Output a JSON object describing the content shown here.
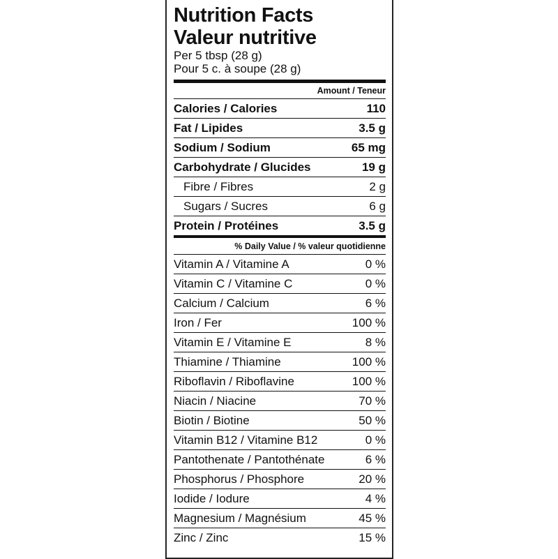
{
  "title_en": "Nutrition Facts",
  "title_fr": "Valeur nutritive",
  "serving_en": "Per 5 tbsp (28 g)",
  "serving_fr": "Pour 5 c. à soupe (28 g)",
  "amount_header": "Amount / Teneur",
  "nutrients": [
    {
      "label": "Calories / Calories",
      "value": "110",
      "bold": true,
      "indent": false
    },
    {
      "label": "Fat / Lipides",
      "value": "3.5 g",
      "bold": true,
      "indent": false
    },
    {
      "label": "Sodium / Sodium",
      "value": "65 mg",
      "bold": true,
      "indent": false
    },
    {
      "label": "Carbohydrate / Glucides",
      "value": "19 g",
      "bold": true,
      "indent": false
    },
    {
      "label": "Fibre / Fibres",
      "value": "2 g",
      "bold": false,
      "indent": true
    },
    {
      "label": "Sugars / Sucres",
      "value": "6 g",
      "bold": false,
      "indent": true
    },
    {
      "label": "Protein / Protéines",
      "value": "3.5 g",
      "bold": true,
      "indent": false
    }
  ],
  "dv_header": "% Daily Value / % valeur quotidienne",
  "vitamins": [
    {
      "label": "Vitamin A / Vitamine A",
      "value": "0 %"
    },
    {
      "label": "Vitamin C / Vitamine C",
      "value": "0 %"
    },
    {
      "label": "Calcium / Calcium",
      "value": "6 %"
    },
    {
      "label": "Iron / Fer",
      "value": "100 %"
    },
    {
      "label": "Vitamin E / Vitamine E",
      "value": "8 %"
    },
    {
      "label": "Thiamine / Thiamine",
      "value": "100 %"
    },
    {
      "label": "Riboflavin / Riboflavine",
      "value": "100 %"
    },
    {
      "label": "Niacin / Niacine",
      "value": "70 %"
    },
    {
      "label": "Biotin / Biotine",
      "value": "50 %"
    },
    {
      "label": "Vitamin B12 / Vitamine B12",
      "value": "0 %"
    },
    {
      "label": "Pantothenate / Pantothénate",
      "value": "6 %"
    },
    {
      "label": "Phosphorus / Phosphore",
      "value": "20 %"
    },
    {
      "label": "Iodide / Iodure",
      "value": "4 %"
    },
    {
      "label": "Magnesium / Magnésium",
      "value": "45 %"
    },
    {
      "label": "Zinc / Zinc",
      "value": "15 %"
    }
  ]
}
